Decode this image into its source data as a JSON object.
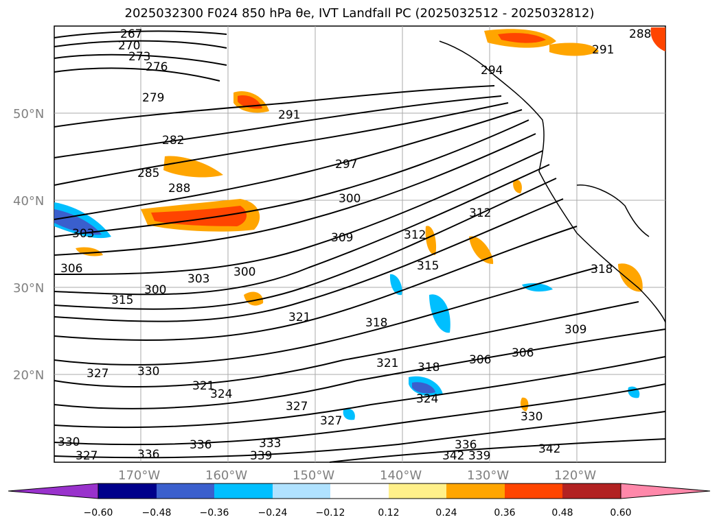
{
  "title": "2025032300 F024 850 hPa θe, IVT Landfall PC (2025032512 - 2025032812)",
  "map": {
    "lat_ticks": [
      "50°N",
      "40°N",
      "30°N",
      "20°N"
    ],
    "lon_ticks": [
      "170°W",
      "160°W",
      "150°W",
      "140°W",
      "130°W",
      "120°W"
    ],
    "gridlines": true,
    "coastline_color": "#000000"
  },
  "contour_labels": [
    "267",
    "270",
    "273",
    "276",
    "279",
    "282",
    "285",
    "288",
    "291",
    "291",
    "288",
    "294",
    "297",
    "300",
    "300",
    "300",
    "303",
    "303",
    "306",
    "306",
    "306",
    "309",
    "309",
    "312",
    "312",
    "315",
    "315",
    "318",
    "318",
    "318",
    "321",
    "321",
    "321",
    "324",
    "324",
    "327",
    "327",
    "327",
    "327",
    "330",
    "330",
    "330",
    "333",
    "336",
    "336",
    "336",
    "339",
    "339",
    "342",
    "342"
  ],
  "colorbar": {
    "ticks": [
      "−0.60",
      "−0.48",
      "−0.36",
      "−0.24",
      "−0.12",
      "0.12",
      "0.24",
      "0.36",
      "0.48",
      "0.60"
    ],
    "colors": [
      "#9932cc",
      "#00008b",
      "#3a5fcd",
      "#00bfff",
      "#b0e2ff",
      "#ffffff",
      "#fff08a",
      "#ffa500",
      "#ff4500",
      "#b22222",
      "#ff88aa"
    ]
  }
}
